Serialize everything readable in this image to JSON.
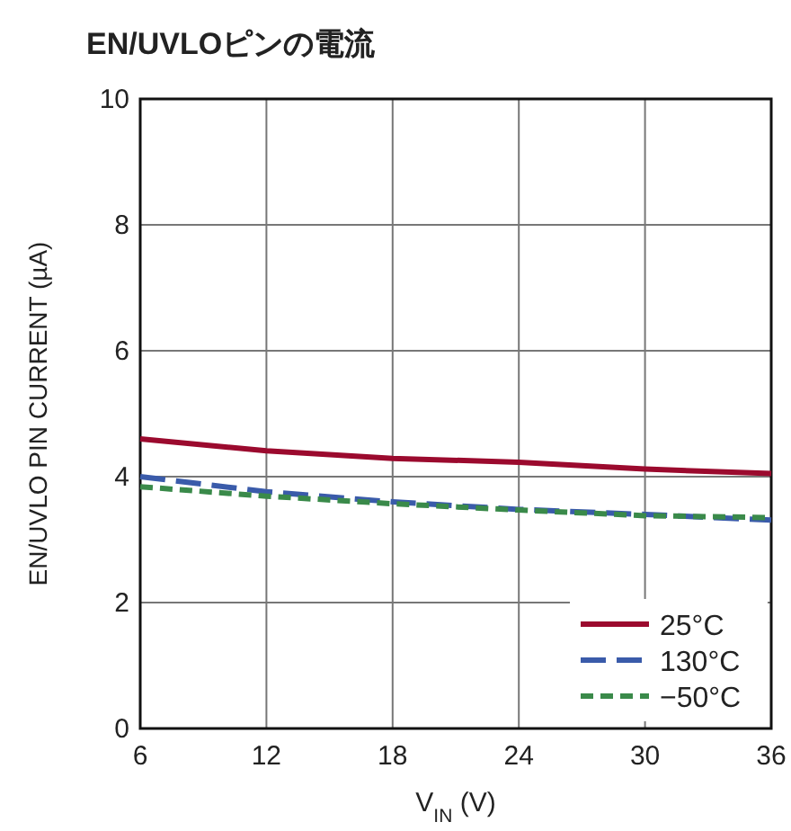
{
  "chart_data": {
    "type": "line",
    "title": "EN/UVLOピンの電流",
    "xlabel": "V$_{IN}$ (V)",
    "ylabel": "EN/UVLO PIN CURRENT (µA)",
    "x": [
      6,
      12,
      18,
      24,
      30,
      36
    ],
    "series": [
      {
        "name": "25°C",
        "color": "#9b0a2e",
        "line_style": "solid",
        "values": [
          4.6,
          4.41,
          4.29,
          4.23,
          4.12,
          4.05
        ]
      },
      {
        "name": "130°C",
        "color": "#3a5baa",
        "line_style": "dashed",
        "values": [
          4.0,
          3.76,
          3.6,
          3.48,
          3.4,
          3.31
        ]
      },
      {
        "name": "−50°C",
        "color": "#3a8a4a",
        "line_style": "dotted",
        "values": [
          3.84,
          3.69,
          3.57,
          3.47,
          3.38,
          3.35
        ]
      }
    ],
    "xlim": [
      6,
      36
    ],
    "ylim": [
      0,
      10
    ],
    "xticks": [
      6,
      12,
      18,
      24,
      30,
      36
    ],
    "yticks": [
      0,
      2,
      4,
      6,
      8,
      10
    ],
    "grid": true,
    "legend": "bottom right"
  }
}
